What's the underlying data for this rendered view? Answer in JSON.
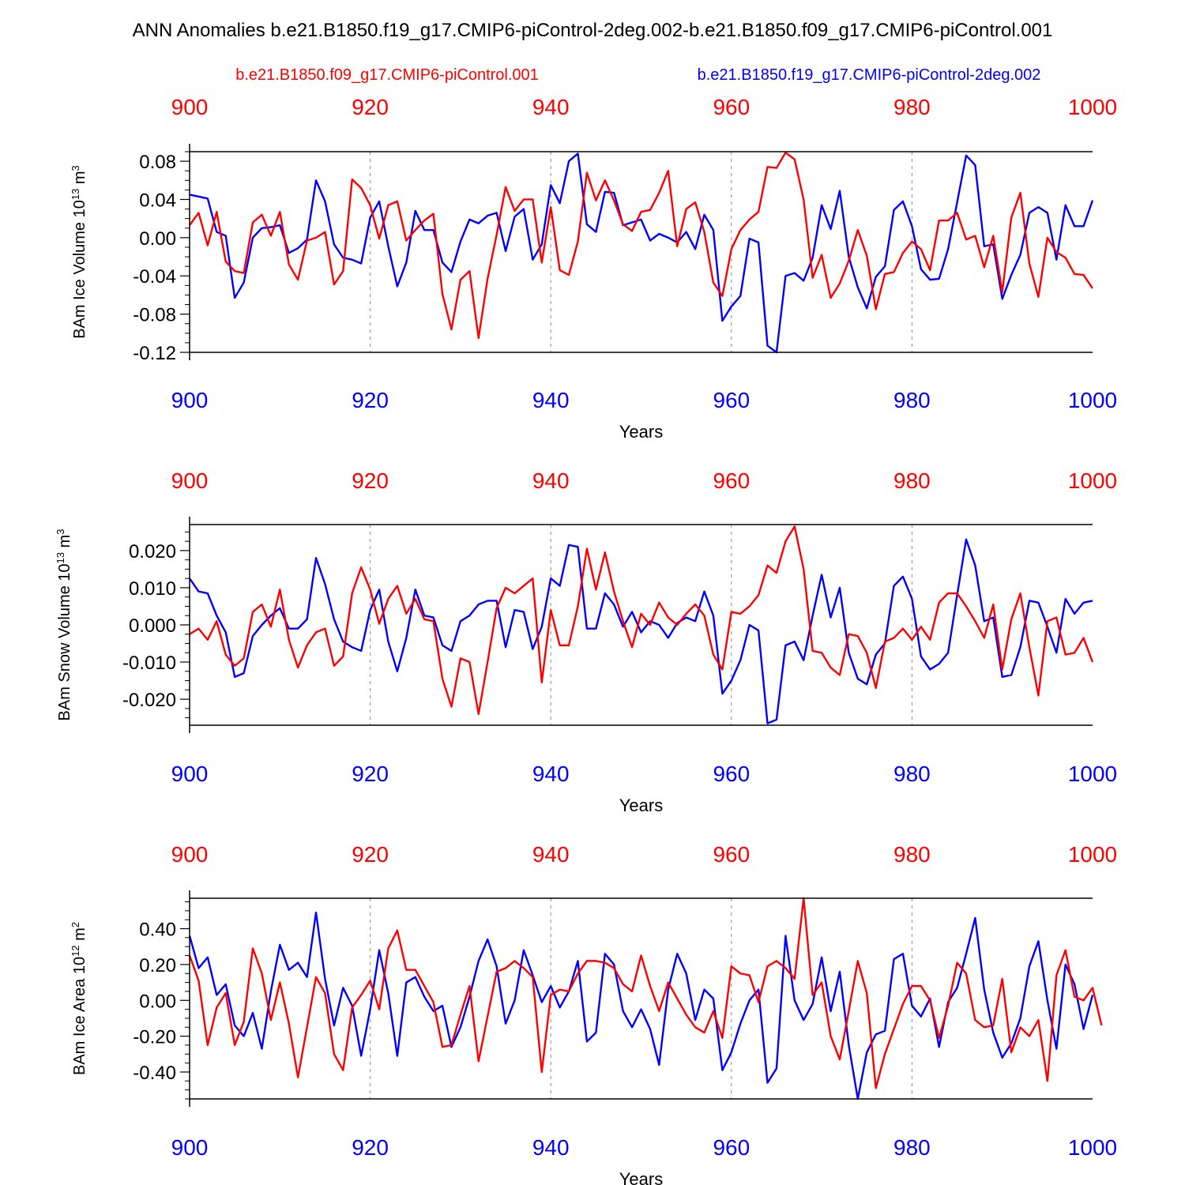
{
  "title": "ANN Anomalies b.e21.B1850.f19_g17.CMIP6-piControl-2deg.002-b.e21.B1850.f09_g17.CMIP6-piControl.001",
  "legend": [
    {
      "name": "b.e21.B1850.f09_g17.CMIP6-piControl.001",
      "color": "#ff0000"
    },
    {
      "name": "b.e21.B1850.f19_g17.CMIP6-piControl-2deg.002",
      "color": "#0000ff"
    }
  ],
  "chart_data": [
    {
      "type": "line",
      "title": "",
      "xlabel": "Years",
      "ylabel": "BAm Ice Volume 10",
      "ylabel_exp": "13",
      "ylabel_unit": " m",
      "ylabel_unit_exp": "3",
      "xlim": [
        900,
        1000
      ],
      "ylim": [
        -0.12,
        0.09
      ],
      "x_top_ticks": [
        "900",
        "920",
        "940",
        "960",
        "980",
        "1000"
      ],
      "x_bottom_ticks": [
        "900",
        "920",
        "940",
        "960",
        "980",
        "1000"
      ],
      "y_ticks": [
        {
          "value": 0.08,
          "label": "0.08"
        },
        {
          "value": 0.04,
          "label": "0.04"
        },
        {
          "value": 0.0,
          "label": "0.00"
        },
        {
          "value": -0.04,
          "label": "-0.04"
        },
        {
          "value": -0.08,
          "label": "-0.08"
        },
        {
          "value": -0.12,
          "label": "-0.12"
        }
      ],
      "x_start": 900,
      "series": [
        {
          "name": "b.e21.B1850.f09_g17.CMIP6-piControl.001",
          "color": "#ff0000",
          "values": [
            0.013,
            0.026,
            -0.008,
            0.027,
            -0.025,
            -0.035,
            -0.037,
            0.016,
            0.024,
            0.002,
            0.027,
            -0.028,
            -0.044,
            -0.003,
            0.0,
            0.006,
            -0.049,
            -0.035,
            0.061,
            0.052,
            0.034,
            -0.001,
            0.034,
            0.038,
            -0.003,
            0.008,
            0.018,
            0.025,
            -0.059,
            -0.096,
            -0.044,
            -0.035,
            -0.105,
            -0.043,
            0.003,
            0.053,
            0.028,
            0.04,
            0.04,
            -0.026,
            0.032,
            -0.034,
            -0.039,
            -0.004,
            0.068,
            0.039,
            0.06,
            0.039,
            0.014,
            0.007,
            0.027,
            0.029,
            0.047,
            0.07,
            -0.009,
            0.03,
            0.037,
            0.006,
            -0.047,
            -0.061,
            -0.012,
            0.008,
            0.019,
            0.027,
            0.074,
            0.073,
            0.089,
            0.082,
            0.04,
            -0.042,
            -0.018,
            -0.063,
            -0.048,
            -0.024,
            0.008,
            -0.019,
            -0.075,
            -0.038,
            -0.036,
            -0.016,
            -0.004,
            -0.012,
            -0.034,
            0.018,
            0.018,
            0.026,
            -0.002,
            0.002,
            -0.031,
            0.002,
            -0.057,
            0.021,
            0.047,
            -0.027,
            -0.062,
            0.0,
            -0.015,
            -0.021,
            -0.038,
            -0.039,
            -0.053
          ]
        },
        {
          "name": "b.e21.B1850.f19_g17.CMIP6-piControl-2deg.002",
          "color": "#0000ff",
          "values": [
            0.045,
            0.043,
            0.041,
            0.006,
            0.002,
            -0.063,
            -0.047,
            0.0,
            0.01,
            0.011,
            0.013,
            -0.016,
            -0.011,
            -0.002,
            0.06,
            0.038,
            -0.007,
            -0.021,
            -0.023,
            -0.027,
            0.021,
            0.038,
            -0.009,
            -0.051,
            -0.026,
            0.028,
            0.008,
            0.008,
            -0.026,
            -0.036,
            -0.004,
            0.019,
            0.015,
            0.023,
            0.026,
            -0.014,
            0.022,
            0.03,
            -0.023,
            -0.007,
            0.055,
            0.036,
            0.08,
            0.088,
            0.014,
            0.006,
            0.048,
            0.047,
            0.013,
            0.016,
            0.019,
            -0.003,
            0.004,
            0.0,
            -0.005,
            0.006,
            -0.012,
            0.024,
            0.008,
            -0.087,
            -0.072,
            -0.061,
            -0.001,
            -0.005,
            -0.113,
            -0.12,
            -0.04,
            -0.037,
            -0.045,
            -0.021,
            0.034,
            0.009,
            0.049,
            -0.02,
            -0.052,
            -0.074,
            -0.041,
            -0.03,
            0.029,
            0.038,
            0.012,
            -0.033,
            -0.044,
            -0.043,
            -0.012,
            0.037,
            0.086,
            0.076,
            -0.009,
            -0.007,
            -0.064,
            -0.039,
            -0.018,
            0.026,
            0.032,
            0.026,
            -0.023,
            0.034,
            0.012,
            0.012,
            0.039
          ]
        }
      ]
    },
    {
      "type": "line",
      "title": "",
      "xlabel": "Years",
      "ylabel": "BAm Snow Volume 10",
      "ylabel_exp": "13",
      "ylabel_unit": " m",
      "ylabel_unit_exp": "3",
      "xlim": [
        900,
        1000
      ],
      "ylim": [
        -0.027,
        0.027
      ],
      "x_top_ticks": [
        "900",
        "920",
        "940",
        "960",
        "980",
        "1000"
      ],
      "x_bottom_ticks": [
        "900",
        "920",
        "940",
        "960",
        "980",
        "1000"
      ],
      "y_ticks": [
        {
          "value": 0.02,
          "label": "0.020"
        },
        {
          "value": 0.01,
          "label": "0.010"
        },
        {
          "value": 0.0,
          "label": "0.000"
        },
        {
          "value": -0.01,
          "label": "-0.010"
        },
        {
          "value": -0.02,
          "label": "-0.020"
        }
      ],
      "x_start": 900,
      "series": [
        {
          "name": "b.e21.B1850.f09_g17.CMIP6-piControl.001",
          "color": "#ff0000",
          "values": [
            -0.0025,
            -0.001,
            -0.004,
            0.001,
            -0.008,
            -0.011,
            -0.009,
            0.0035,
            0.0055,
            -0.0005,
            0.0095,
            -0.004,
            -0.0115,
            -0.0055,
            -0.002,
            -0.001,
            -0.011,
            -0.0085,
            0.0085,
            0.0155,
            0.0095,
            0.0003,
            0.007,
            0.0105,
            0.003,
            0.007,
            0.0015,
            0.001,
            -0.0145,
            -0.022,
            -0.009,
            -0.01,
            -0.024,
            -0.01,
            0.0045,
            0.01,
            0.0085,
            0.0105,
            0.0125,
            -0.0155,
            0.004,
            -0.0055,
            -0.0055,
            0.005,
            0.0205,
            0.0095,
            0.0195,
            0.009,
            0.001,
            -0.006,
            0.003,
            0.0,
            0.006,
            0.002,
            0.0,
            0.003,
            0.0055,
            0.0025,
            -0.008,
            -0.012,
            0.0035,
            0.003,
            0.005,
            0.008,
            0.016,
            0.014,
            0.0225,
            0.0265,
            0.015,
            -0.007,
            -0.0075,
            -0.0115,
            -0.0135,
            -0.0025,
            -0.003,
            -0.0075,
            -0.017,
            -0.0045,
            -0.0035,
            -0.001,
            -0.004,
            -0.0005,
            -0.004,
            0.006,
            0.0085,
            0.0085,
            0.005,
            0.001,
            -0.0035,
            0.0055,
            -0.012,
            0.0015,
            0.0085,
            -0.006,
            -0.019,
            0.001,
            0.002,
            -0.008,
            -0.0075,
            -0.0035,
            -0.01
          ]
        },
        {
          "name": "b.e21.B1850.f19_g17.CMIP6-piControl-2deg.002",
          "color": "#0000ff",
          "values": [
            0.0125,
            0.009,
            0.0085,
            0.0025,
            -0.002,
            -0.014,
            -0.013,
            -0.003,
            0.0,
            0.0025,
            0.0045,
            -0.001,
            -0.001,
            0.0015,
            0.018,
            0.011,
            0.0015,
            -0.0045,
            -0.006,
            -0.007,
            0.004,
            0.0095,
            -0.0045,
            -0.0125,
            -0.0035,
            0.0095,
            0.0025,
            0.002,
            -0.0055,
            -0.007,
            0.001,
            0.0025,
            0.0055,
            0.0065,
            0.0065,
            -0.006,
            0.004,
            0.0035,
            -0.0065,
            -0.0005,
            0.0125,
            0.0105,
            0.0215,
            0.021,
            -0.001,
            -0.001,
            0.0085,
            0.0055,
            -0.0005,
            0.0035,
            -0.002,
            0.001,
            0.0,
            -0.0035,
            0.0005,
            0.002,
            0.001,
            0.009,
            0.0025,
            -0.0185,
            -0.015,
            -0.0095,
            0.0,
            -0.0015,
            -0.0265,
            -0.0255,
            -0.0055,
            -0.0045,
            -0.0095,
            0.0025,
            0.0135,
            0.002,
            0.01,
            -0.0075,
            -0.0145,
            -0.016,
            -0.008,
            -0.005,
            0.0105,
            0.013,
            0.007,
            -0.0085,
            -0.012,
            -0.0105,
            -0.0075,
            0.008,
            0.023,
            0.016,
            0.001,
            0.002,
            -0.014,
            -0.0135,
            -0.006,
            0.0065,
            0.006,
            -0.0005,
            -0.0075,
            0.007,
            0.003,
            0.006,
            0.0065
          ]
        }
      ]
    },
    {
      "type": "line",
      "title": "",
      "xlabel": "Years",
      "ylabel": "BAm Ice Area 10",
      "ylabel_exp": "12",
      "ylabel_unit": " m",
      "ylabel_unit_exp": "2",
      "xlim": [
        900,
        1000
      ],
      "ylim": [
        -0.55,
        0.57
      ],
      "x_top_ticks": [
        "900",
        "920",
        "940",
        "960",
        "980",
        "1000"
      ],
      "x_bottom_ticks": [
        "900",
        "920",
        "940",
        "960",
        "980",
        "1000"
      ],
      "y_ticks": [
        {
          "value": 0.4,
          "label": "0.40"
        },
        {
          "value": 0.2,
          "label": "0.20"
        },
        {
          "value": 0.0,
          "label": "0.00"
        },
        {
          "value": -0.2,
          "label": "-0.20"
        },
        {
          "value": -0.4,
          "label": "-0.40"
        }
      ],
      "x_start": 900,
      "series": [
        {
          "name": "b.e21.B1850.f09_g17.CMIP6-piControl.001",
          "color": "#ff0000",
          "values": [
            0.25,
            0.11,
            -0.25,
            -0.04,
            0.04,
            -0.25,
            -0.12,
            0.29,
            0.15,
            -0.11,
            0.1,
            -0.13,
            -0.43,
            -0.15,
            0.13,
            0.04,
            -0.3,
            -0.39,
            -0.04,
            0.03,
            0.11,
            -0.05,
            0.29,
            0.39,
            0.17,
            0.17,
            0.08,
            -0.01,
            -0.26,
            -0.25,
            -0.08,
            0.08,
            -0.34,
            -0.09,
            0.16,
            0.18,
            0.22,
            0.18,
            0.13,
            -0.4,
            0.03,
            0.06,
            0.05,
            0.15,
            0.22,
            0.22,
            0.21,
            0.18,
            0.09,
            0.05,
            0.25,
            0.08,
            -0.06,
            0.1,
            0.01,
            -0.08,
            -0.15,
            -0.18,
            -0.06,
            -0.21,
            0.19,
            0.15,
            0.14,
            -0.01,
            0.19,
            0.22,
            0.18,
            0.12,
            0.57,
            0.03,
            0.1,
            -0.2,
            -0.33,
            -0.06,
            0.22,
            0.04,
            -0.49,
            -0.3,
            -0.16,
            -0.02,
            0.08,
            0.08,
            0.0,
            -0.21,
            -0.03,
            0.21,
            0.15,
            -0.11,
            -0.15,
            -0.14,
            0.12,
            -0.29,
            -0.15,
            -0.2,
            -0.11,
            -0.45,
            0.14,
            0.28,
            0.02,
            0.0,
            0.07,
            -0.14
          ]
        },
        {
          "name": "b.e21.B1850.f19_g17.CMIP6-piControl-2deg.002",
          "color": "#0000ff",
          "values": [
            0.36,
            0.18,
            0.24,
            0.03,
            0.09,
            -0.14,
            -0.2,
            -0.07,
            -0.27,
            0.05,
            0.31,
            0.17,
            0.21,
            0.13,
            0.49,
            0.12,
            -0.14,
            0.07,
            -0.03,
            -0.31,
            -0.05,
            0.28,
            0.04,
            -0.31,
            0.1,
            0.13,
            0.02,
            -0.06,
            -0.03,
            -0.26,
            -0.15,
            0.02,
            0.22,
            0.34,
            0.19,
            -0.13,
            0.0,
            0.28,
            0.14,
            -0.01,
            0.08,
            -0.04,
            0.05,
            0.22,
            -0.23,
            -0.18,
            0.26,
            0.2,
            -0.06,
            -0.15,
            -0.05,
            -0.16,
            -0.36,
            0.06,
            0.26,
            0.15,
            -0.11,
            0.06,
            0.01,
            -0.39,
            -0.29,
            -0.13,
            0.0,
            0.06,
            -0.46,
            -0.38,
            0.36,
            0.0,
            -0.11,
            -0.02,
            0.24,
            -0.06,
            0.16,
            -0.25,
            -0.55,
            -0.29,
            -0.19,
            -0.17,
            0.23,
            0.26,
            -0.03,
            -0.09,
            0.01,
            -0.26,
            -0.01,
            0.07,
            0.26,
            0.46,
            0.06,
            -0.18,
            -0.32,
            -0.24,
            -0.1,
            0.19,
            0.33,
            0.0,
            -0.27,
            0.2,
            0.09,
            -0.16,
            0.03
          ]
        }
      ]
    }
  ]
}
